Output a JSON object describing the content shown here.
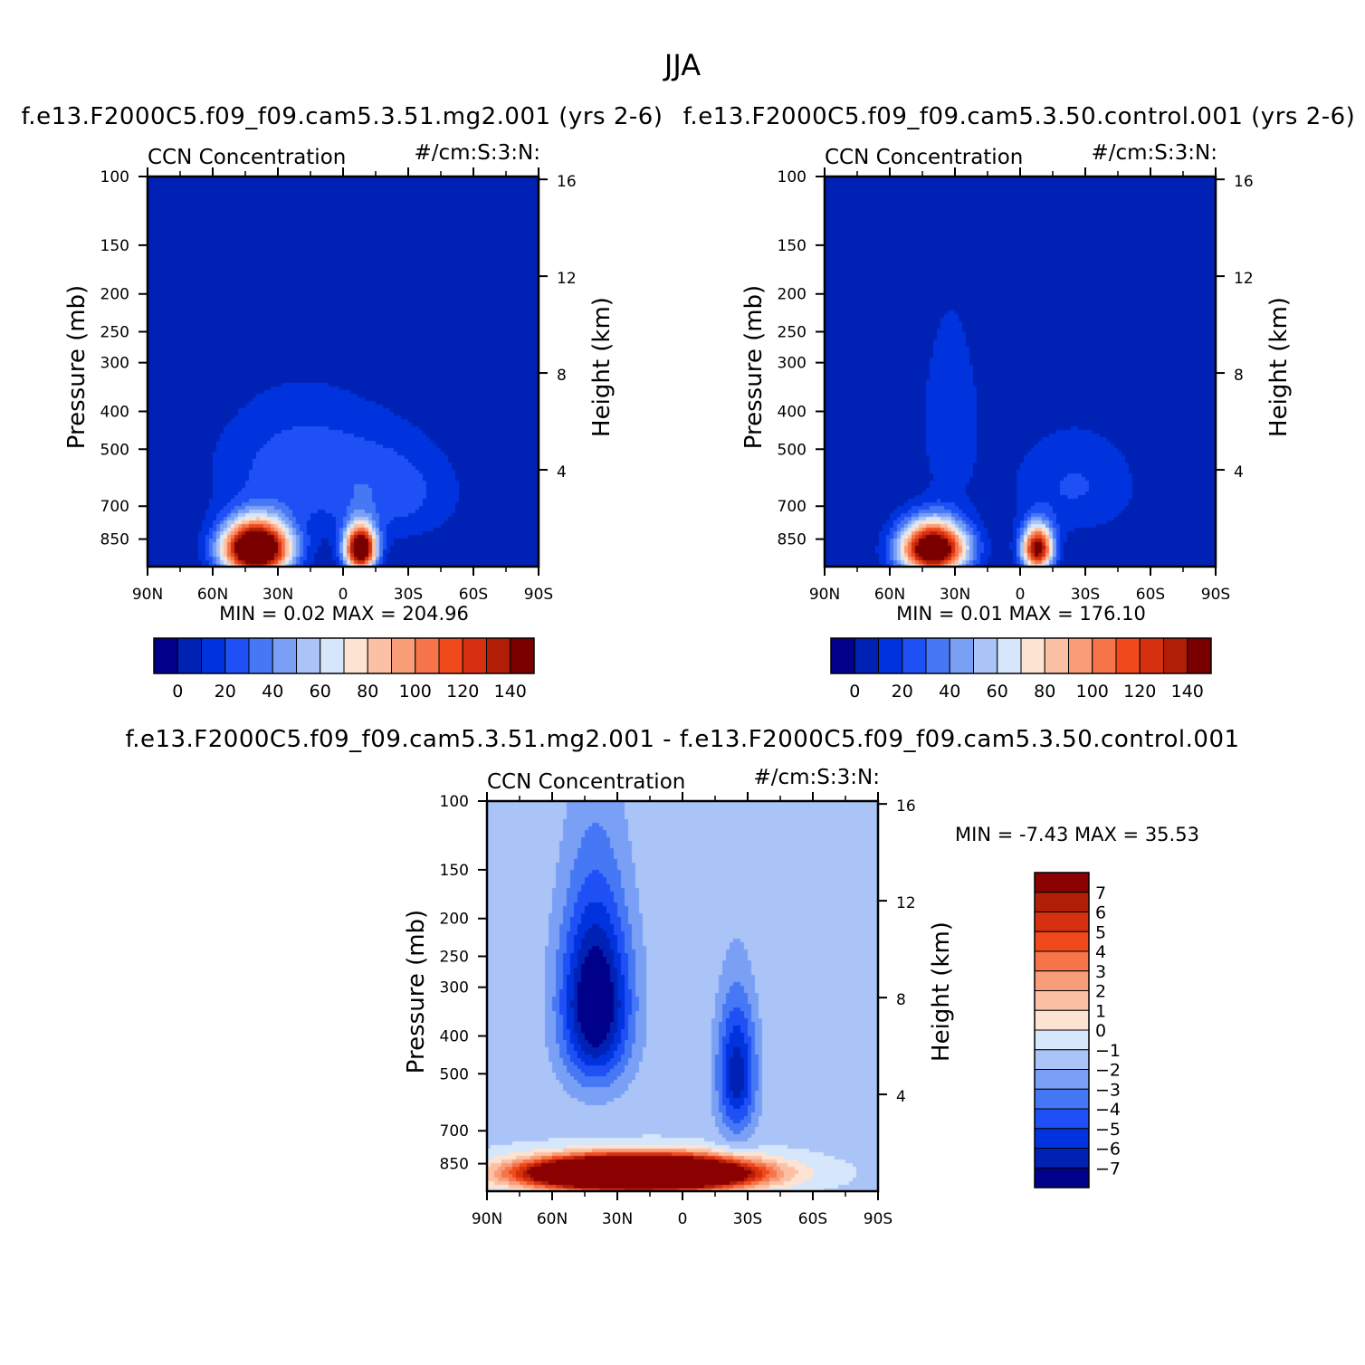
{
  "figure_title": "JJA",
  "colors": {
    "scale16": [
      "#00008b",
      "#0022b4",
      "#0033dd",
      "#1e50f5",
      "#4678f5",
      "#7aa0f5",
      "#aac4f8",
      "#d6e6fb",
      "#fde3d1",
      "#fcc1a5",
      "#f89d78",
      "#f6744a",
      "#f04a1c",
      "#d63010",
      "#b01e07",
      "#7a0000"
    ],
    "diff": [
      "#00008b",
      "#0022b4",
      "#0033dd",
      "#1e50f5",
      "#4678f5",
      "#7aa0f5",
      "#aac4f8",
      "#d6e6fb",
      "#fde3d1",
      "#fcc1a5",
      "#f89d78",
      "#f6744a",
      "#f04a1c",
      "#d63010",
      "#b01e07",
      "#8b0000"
    ]
  },
  "chart_data": [
    {
      "id": "panel1",
      "type": "contour",
      "title": "f.e13.F2000C5.f09_f09.cam5.3.51.mg2.001 (yrs 2-6)",
      "left_label": "CCN Concentration",
      "right_label": "#/cm:S:3:N:",
      "ylabel": "Pressure (mb)",
      "y2label": "Height (km)",
      "x_ticks": [
        "90N",
        "60N",
        "30N",
        "0",
        "30S",
        "60S",
        "90S"
      ],
      "x_range": [
        90,
        -90
      ],
      "y_ticks": [
        100,
        150,
        200,
        250,
        300,
        400,
        500,
        700,
        850
      ],
      "y2_ticks": [
        4,
        8,
        12,
        16
      ],
      "stats": "MIN =    0.02   MAX = 204.96",
      "min": 0.02,
      "max": 204.96,
      "colorbar": {
        "orientation": "horizontal",
        "labels": [
          "0",
          "20",
          "40",
          "60",
          "80",
          "100",
          "120",
          "140"
        ]
      },
      "features": [
        {
          "lat": 40,
          "pressure": 900,
          "amp": 210,
          "lat_width": 15,
          "depth_mb": 140
        },
        {
          "lat": -8,
          "pressure": 900,
          "amp": 180,
          "lat_width": 7,
          "depth_mb": 120
        },
        {
          "lat": 20,
          "pressure": 560,
          "amp": 25,
          "lat_width": 40,
          "depth_mb": 220
        },
        {
          "lat": -25,
          "pressure": 650,
          "amp": 20,
          "lat_width": 30,
          "depth_mb": 200
        }
      ]
    },
    {
      "id": "panel2",
      "type": "contour",
      "title": "f.e13.F2000C5.f09_f09.cam5.3.50.control.001 (yrs 2-6)",
      "left_label": "CCN Concentration",
      "right_label": "#/cm:S:3:N:",
      "ylabel": "Pressure (mb)",
      "y2label": "Height (km)",
      "x_ticks": [
        "90N",
        "60N",
        "30N",
        "0",
        "30S",
        "60S",
        "90S"
      ],
      "x_range": [
        90,
        -90
      ],
      "y_ticks": [
        100,
        150,
        200,
        250,
        300,
        400,
        500,
        700,
        850
      ],
      "y2_ticks": [
        4,
        8,
        12,
        16
      ],
      "stats": "MIN =    0.01   MAX = 176.10",
      "min": 0.01,
      "max": 176.1,
      "colorbar": {
        "orientation": "horizontal",
        "labels": [
          "0",
          "20",
          "40",
          "60",
          "80",
          "100",
          "120",
          "140"
        ]
      },
      "features": [
        {
          "lat": 40,
          "pressure": 900,
          "amp": 180,
          "lat_width": 15,
          "depth_mb": 140
        },
        {
          "lat": -8,
          "pressure": 900,
          "amp": 150,
          "lat_width": 7,
          "depth_mb": 120
        },
        {
          "lat": 32,
          "pressure": 420,
          "amp": 18,
          "lat_width": 14,
          "depth_mb": 240
        },
        {
          "lat": -25,
          "pressure": 620,
          "amp": 20,
          "lat_width": 30,
          "depth_mb": 200
        }
      ]
    },
    {
      "id": "panel3",
      "type": "contour",
      "title": "f.e13.F2000C5.f09_f09.cam5.3.51.mg2.001 - f.e13.F2000C5.f09_f09.cam5.3.50.control.001",
      "left_label": "CCN Concentration",
      "right_label": "#/cm:S:3:N:",
      "ylabel": "Pressure (mb)",
      "y2label": "Height (km)",
      "x_ticks": [
        "90N",
        "60N",
        "30N",
        "0",
        "30S",
        "60S",
        "90S"
      ],
      "x_range": [
        90,
        -90
      ],
      "y_ticks": [
        100,
        150,
        200,
        250,
        300,
        400,
        500,
        700,
        850
      ],
      "y2_ticks": [
        4,
        8,
        12,
        16
      ],
      "stats": "MIN =   -7.43   MAX =   35.53",
      "min": -7.43,
      "max": 35.53,
      "colorbar": {
        "orientation": "vertical",
        "labels": [
          "7",
          "6",
          "5",
          "4",
          "3",
          "2",
          "1",
          "0",
          "−1",
          "−2",
          "−3",
          "−4",
          "−5",
          "−6",
          "−7"
        ]
      },
      "features": [
        {
          "lat": 40,
          "pressure": 330,
          "amp": -7.6,
          "lat_width": 16,
          "depth_mb": 180
        },
        {
          "lat": -25,
          "pressure": 500,
          "amp": -5.5,
          "lat_width": 9,
          "depth_mb": 200
        },
        {
          "lat": 20,
          "pressure": 900,
          "amp": 30,
          "lat_width": 45,
          "depth_mb": 80
        }
      ]
    }
  ]
}
